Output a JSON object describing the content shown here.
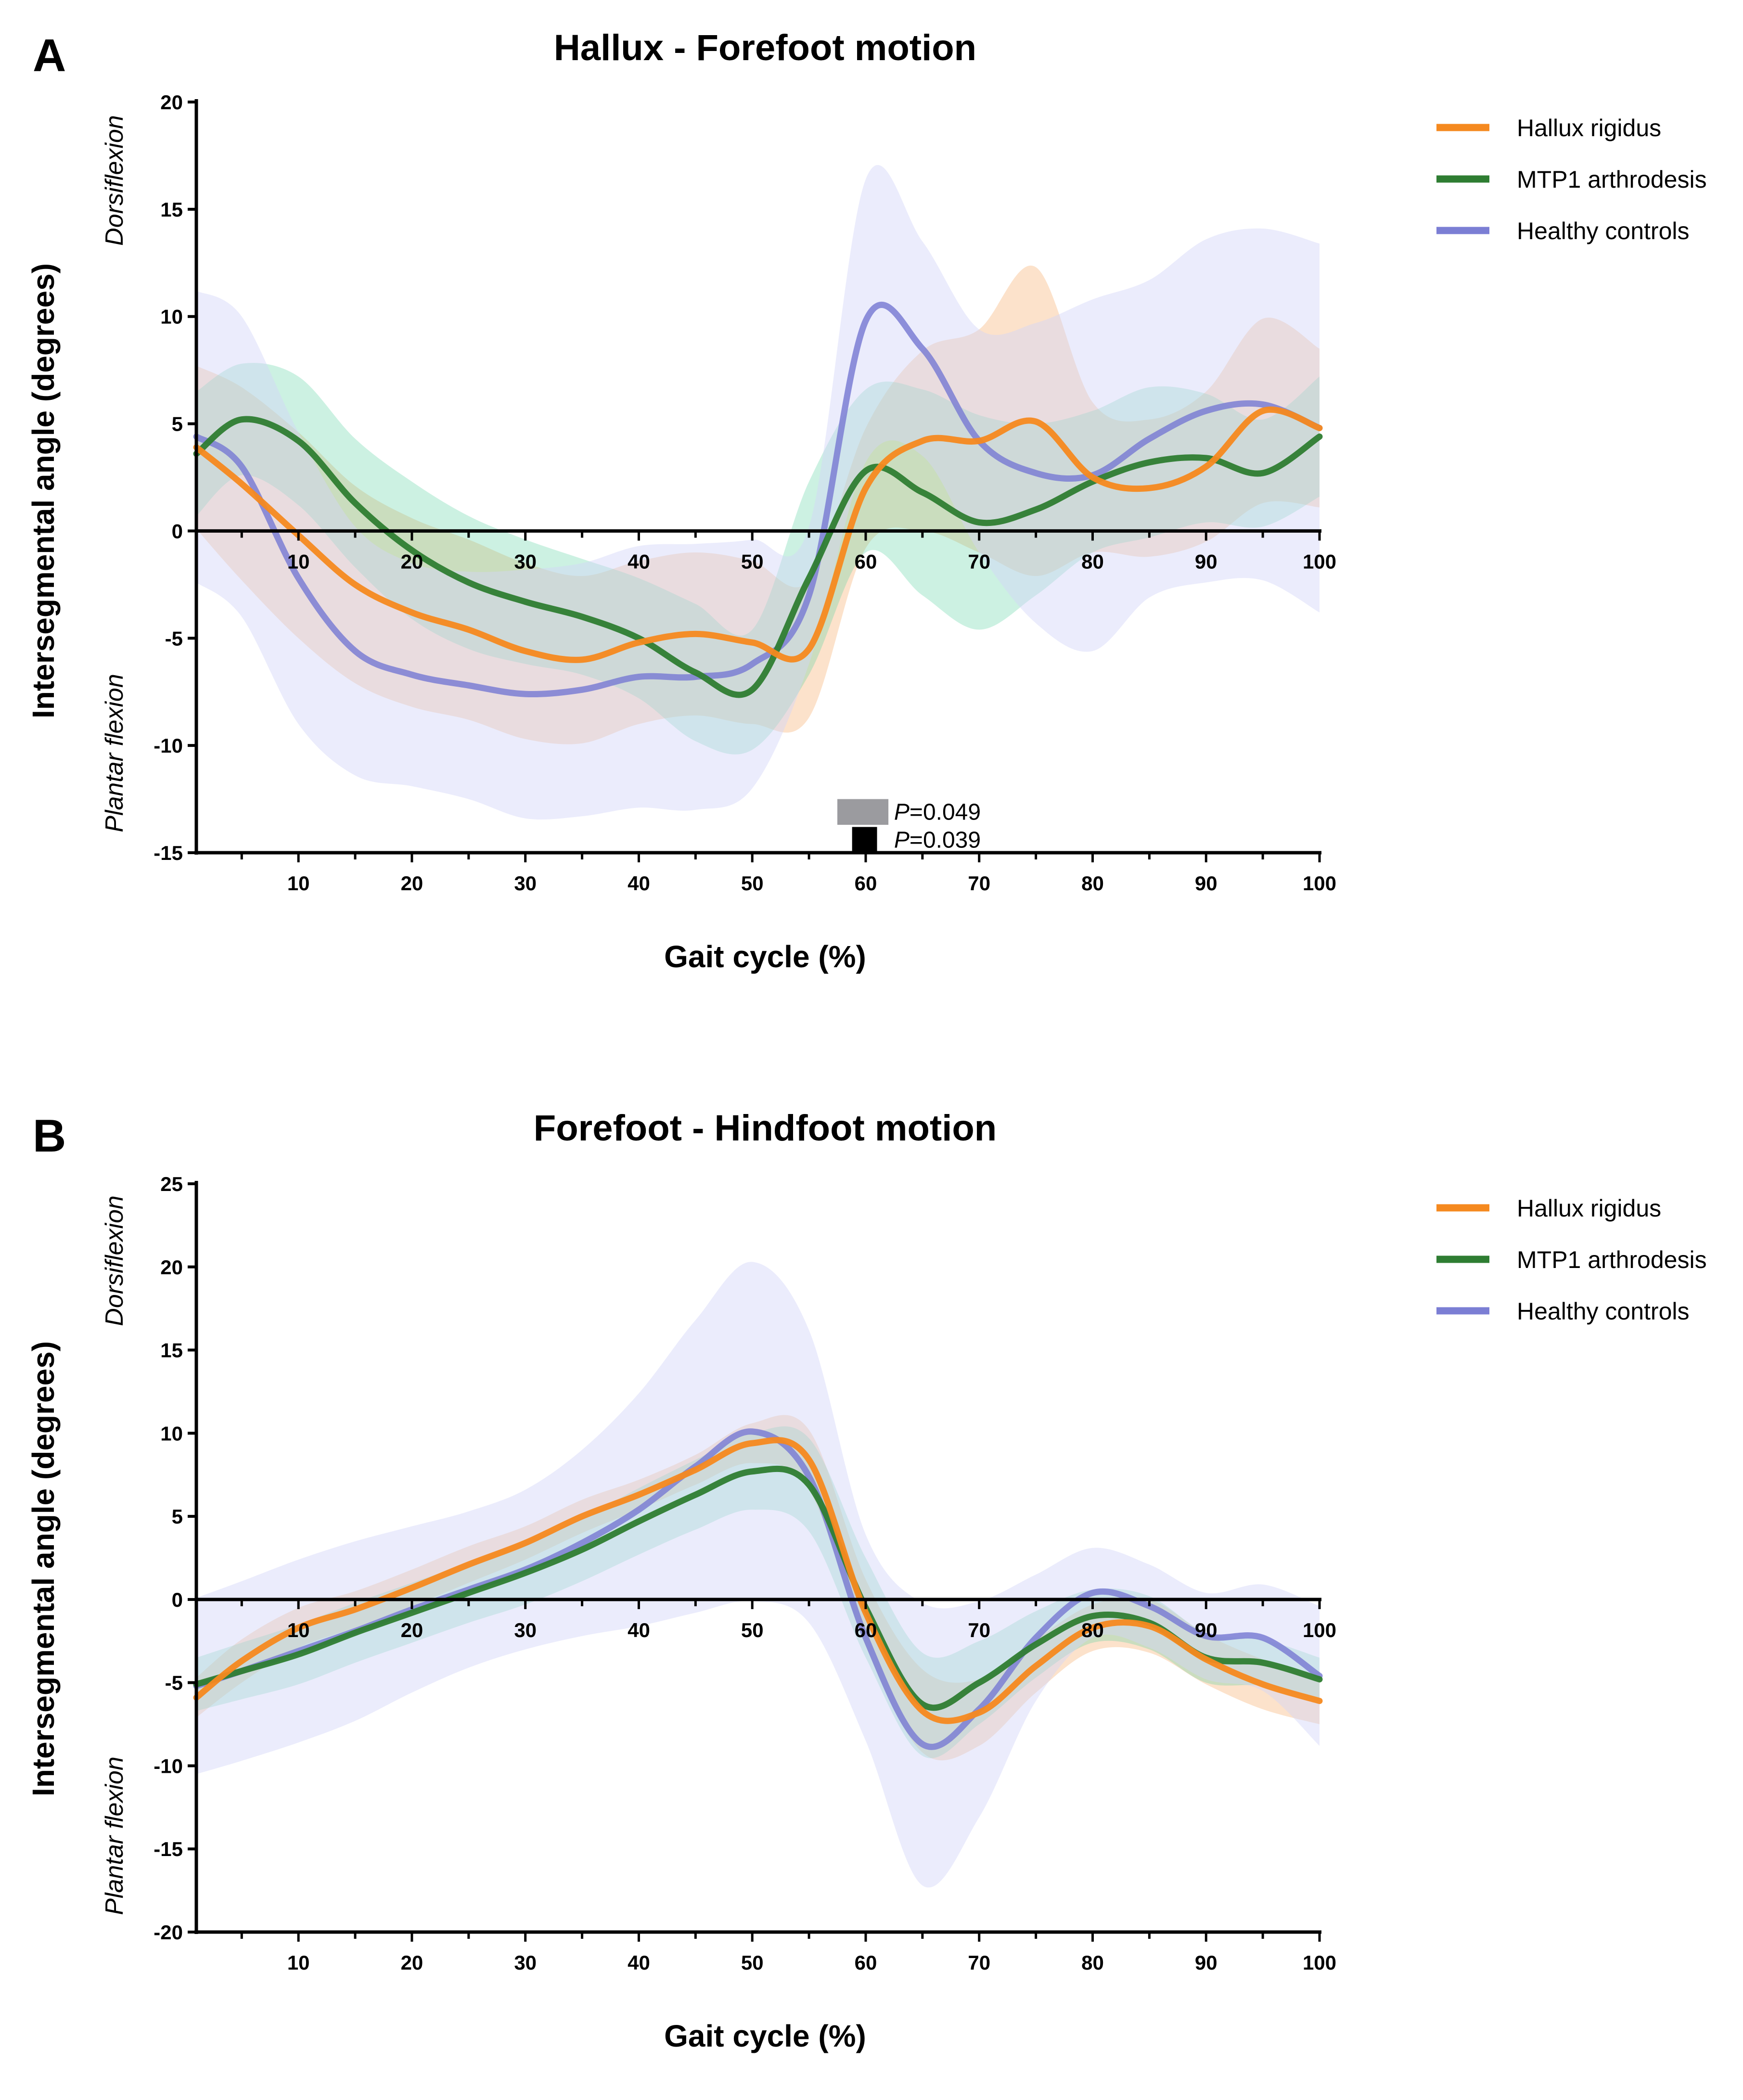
{
  "figure": {
    "panels": [
      {
        "letter": "A",
        "side_labels": {
          "top": "Dorsiflexion",
          "bottom": "Plantar flexion"
        },
        "significance": [
          {
            "label_prefix": "P",
            "label_value": "=0.049",
            "x_from": 57.5,
            "x_to": 62,
            "y_from": -13.7,
            "y_to": -12.5,
            "color": "#9b9b9f"
          },
          {
            "label_prefix": "P",
            "label_value": "=0.039",
            "x_from": 58.8,
            "x_to": 61,
            "y_from": -15,
            "y_to": -13.8,
            "color": "#000000"
          }
        ]
      },
      {
        "letter": "B",
        "side_labels": {
          "top": "Dorsiflexion",
          "bottom": "Plantar flexion"
        },
        "significance": []
      }
    ]
  },
  "chart_data": [
    {
      "type": "line",
      "title": "Hallux - Forefoot motion",
      "xlabel": "Gait cycle (%)",
      "ylabel": "Intersegmental angle (degrees)",
      "xlim": [
        1,
        100
      ],
      "ylim": [
        -15,
        20
      ],
      "xticks": [
        10,
        20,
        30,
        40,
        50,
        60,
        70,
        80,
        90,
        100
      ],
      "yticks": [
        -15,
        -10,
        -5,
        0,
        5,
        10,
        15,
        20
      ],
      "zero_line_labels": true,
      "legend_position": "right",
      "x": [
        1,
        5,
        10,
        15,
        20,
        25,
        30,
        35,
        40,
        45,
        50,
        55,
        60,
        65,
        70,
        75,
        80,
        85,
        90,
        95,
        100
      ],
      "series": [
        {
          "name": "Hallux rigidus",
          "color": "#f5891f",
          "band_color": "#f8b476",
          "band_opacity": 0.38,
          "values": [
            3.9,
            2.2,
            -0.2,
            -2.5,
            -3.8,
            -4.6,
            -5.6,
            -6.0,
            -5.2,
            -4.8,
            -5.2,
            -5.5,
            2.0,
            4.2,
            4.2,
            5.1,
            2.5,
            2.0,
            3.0,
            5.6,
            4.8
          ],
          "band": [
            3.8,
            4.5,
            4.8,
            4.6,
            4.4,
            4.2,
            4.1,
            3.9,
            3.8,
            3.8,
            3.8,
            3.2,
            2.8,
            4.2,
            5.2,
            7.2,
            3.5,
            3.2,
            3.5,
            4.3,
            3.7
          ]
        },
        {
          "name": "MTP1 arthrodesis",
          "color": "#2e7d32",
          "band_color": "#5fd3a4",
          "band_opacity": 0.32,
          "values": [
            3.6,
            5.2,
            4.2,
            1.3,
            -0.9,
            -2.4,
            -3.3,
            -4.0,
            -5.0,
            -6.6,
            -7.4,
            -2.2,
            2.8,
            1.8,
            0.4,
            1.0,
            2.3,
            3.2,
            3.4,
            2.7,
            4.4
          ],
          "band": [
            2.9,
            2.6,
            3.0,
            3.0,
            3.2,
            3.1,
            2.9,
            2.7,
            2.8,
            3.2,
            2.8,
            4.5,
            3.8,
            4.8,
            5.0,
            4.0,
            3.3,
            3.5,
            3.0,
            2.5,
            2.8
          ]
        },
        {
          "name": "Healthy controls",
          "color": "#7b7ed4",
          "band_color": "#d2d4f8",
          "band_opacity": 0.45,
          "values": [
            4.4,
            3.0,
            -2.2,
            -5.6,
            -6.7,
            -7.2,
            -7.6,
            -7.4,
            -6.8,
            -6.8,
            -6.2,
            -3.0,
            9.8,
            8.5,
            4.2,
            2.7,
            2.6,
            4.3,
            5.6,
            5.9,
            4.8
          ],
          "band": [
            6.8,
            7.0,
            6.8,
            5.8,
            5.2,
            5.3,
            5.8,
            5.9,
            6.1,
            6.2,
            5.8,
            3.2,
            6.6,
            5.0,
            5.2,
            7.0,
            8.2,
            7.4,
            8.0,
            8.2,
            8.6
          ]
        }
      ]
    },
    {
      "type": "line",
      "title": "Forefoot - Hindfoot motion",
      "xlabel": "Gait cycle (%)",
      "ylabel": "Intersegmental angle (degrees)",
      "xlim": [
        1,
        100
      ],
      "ylim": [
        -20,
        25
      ],
      "xticks": [
        10,
        20,
        30,
        40,
        50,
        60,
        70,
        80,
        90,
        100
      ],
      "yticks": [
        -20,
        -15,
        -10,
        -5,
        0,
        5,
        10,
        15,
        20,
        25
      ],
      "zero_line_labels": true,
      "legend_position": "right",
      "x": [
        1,
        5,
        10,
        15,
        20,
        25,
        30,
        35,
        40,
        45,
        50,
        55,
        60,
        65,
        70,
        75,
        80,
        85,
        90,
        95,
        100
      ],
      "series": [
        {
          "name": "Hallux rigidus",
          "color": "#f5891f",
          "band_color": "#f8b476",
          "band_opacity": 0.38,
          "values": [
            -5.9,
            -3.7,
            -1.7,
            -0.6,
            0.7,
            2.1,
            3.4,
            5.0,
            6.3,
            7.8,
            9.4,
            8.4,
            -0.8,
            -6.7,
            -6.8,
            -4.0,
            -1.7,
            -1.6,
            -3.6,
            -5.1,
            -6.1
          ],
          "band": [
            1.2,
            1.3,
            1.2,
            1.1,
            1.1,
            1.1,
            1.0,
            1.0,
            0.9,
            0.9,
            1.2,
            1.8,
            2.0,
            2.5,
            2.0,
            1.6,
            1.4,
            1.6,
            1.5,
            1.5,
            1.4
          ]
        },
        {
          "name": "MTP1 arthrodesis",
          "color": "#2e7d32",
          "band_color": "#5fd3a4",
          "band_opacity": 0.32,
          "values": [
            -5.1,
            -4.3,
            -3.3,
            -2.0,
            -0.8,
            0.4,
            1.6,
            3.0,
            4.7,
            6.3,
            7.7,
            6.9,
            -0.5,
            -6.3,
            -5.0,
            -2.7,
            -1.0,
            -1.4,
            -3.5,
            -3.8,
            -4.8
          ],
          "band": [
            1.6,
            1.7,
            1.8,
            1.8,
            1.8,
            1.8,
            1.9,
            1.9,
            2.0,
            2.1,
            2.3,
            2.8,
            3.0,
            3.1,
            2.5,
            2.0,
            1.6,
            1.6,
            1.5,
            1.4,
            1.3
          ]
        },
        {
          "name": "Healthy controls",
          "color": "#7b7ed4",
          "band_color": "#d2d4f8",
          "band_opacity": 0.45,
          "values": [
            -5.2,
            -4.3,
            -3.1,
            -1.9,
            -0.6,
            0.6,
            1.8,
            3.4,
            5.4,
            8.0,
            10.1,
            7.4,
            -2.3,
            -8.7,
            -6.6,
            -2.3,
            0.4,
            -0.4,
            -2.2,
            -2.3,
            -4.6
          ],
          "band": [
            5.3,
            5.4,
            5.5,
            5.4,
            5.0,
            4.7,
            4.8,
            5.6,
            7.0,
            8.8,
            10.2,
            8.8,
            6.2,
            8.5,
            6.5,
            3.8,
            2.7,
            2.5,
            2.6,
            3.2,
            4.2
          ]
        }
      ]
    }
  ]
}
